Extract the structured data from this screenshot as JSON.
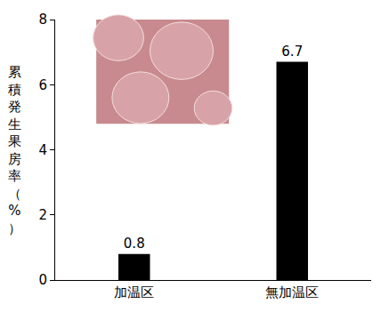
{
  "chart_data": {
    "type": "bar",
    "y_label": "累積発生果房率（%）",
    "categories": [
      "加温区",
      "無加温区"
    ],
    "values": [
      0.8,
      6.7
    ],
    "color": "#000000",
    "ylim": [
      0,
      8
    ],
    "yticks": [
      0,
      2,
      4,
      6,
      8
    ],
    "grid": false,
    "data_labels": true
  }
}
